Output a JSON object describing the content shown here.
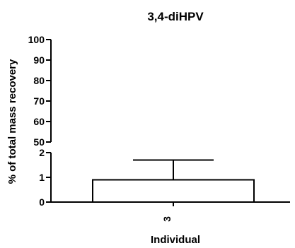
{
  "chart_data": {
    "type": "bar",
    "title": "3,4-diHPV",
    "xlabel": "Individual",
    "ylabel": "% of total mass recovery",
    "categories": [
      "3"
    ],
    "values": [
      0.9
    ],
    "errors": [
      0.8
    ],
    "y_axis_break": true,
    "ylim_lower": [
      0,
      2
    ],
    "ylim_upper": [
      50,
      100
    ],
    "yticks_lower": [
      "0",
      "1",
      "2"
    ],
    "yticks_upper": [
      "50",
      "60",
      "70",
      "80",
      "90",
      "100"
    ],
    "grid": false,
    "legend": "none",
    "colors": {
      "bar_fill": "#ffffff",
      "stroke": "#000000"
    }
  }
}
